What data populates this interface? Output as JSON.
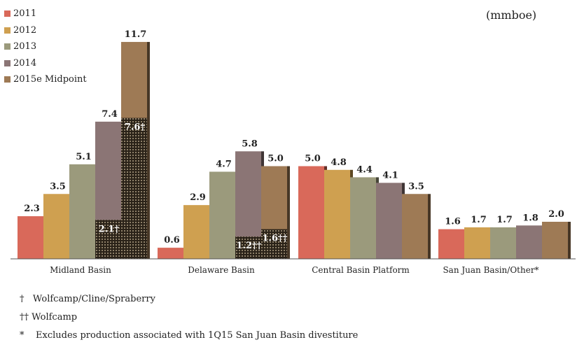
{
  "unit_label": "(mmboe)",
  "legend": [
    {
      "label": "2011",
      "color": "#d9695a"
    },
    {
      "label": "2012",
      "color": "#cfa050"
    },
    {
      "label": "2013",
      "color": "#9b9a7c"
    },
    {
      "label": "2014",
      "color": "#8b7575"
    },
    {
      "label": "2015e Midpoint",
      "color": "#9e7a55"
    }
  ],
  "footnotes": [
    {
      "symbol": "†",
      "text": "Wolfcamp/Cline/Spraberry"
    },
    {
      "symbol": "††",
      "text": "Wolfcamp"
    },
    {
      "symbol": "*",
      "text": "Excludes production associated with 1Q15 San Juan Basin divestiture"
    }
  ],
  "chart_data": {
    "type": "bar",
    "unit": "(mmboe)",
    "categories": [
      "Midland Basin",
      "Delaware Basin",
      "Central Basin Platform",
      "San Juan Basin/Other*"
    ],
    "series": [
      {
        "name": "2011",
        "color": "#d9695a",
        "values": [
          2.3,
          0.6,
          5.0,
          1.6
        ]
      },
      {
        "name": "2012",
        "color": "#cfa050",
        "values": [
          3.5,
          2.9,
          4.8,
          1.7
        ]
      },
      {
        "name": "2013",
        "color": "#9b9a7c",
        "values": [
          5.1,
          4.7,
          4.4,
          1.7
        ]
      },
      {
        "name": "2014",
        "color": "#8b7575",
        "values": [
          7.4,
          5.8,
          4.1,
          1.8
        ]
      },
      {
        "name": "2015e Midpoint",
        "color": "#9e7a55",
        "values": [
          11.7,
          5.0,
          3.5,
          2.0
        ]
      }
    ],
    "value_labels": [
      [
        "2.3",
        "3.5",
        "5.1",
        "7.4",
        "11.7"
      ],
      [
        "0.6",
        "2.9",
        "4.7",
        "5.8",
        "5.0"
      ],
      [
        "5.0",
        "4.8",
        "4.4",
        "4.1",
        "3.5"
      ],
      [
        "1.6",
        "1.7",
        "1.7",
        "1.8",
        "2.0"
      ]
    ],
    "hatched_segments": [
      {
        "category": 0,
        "series": 3,
        "value": 2.1,
        "label": "2.1†"
      },
      {
        "category": 0,
        "series": 4,
        "value": 7.6,
        "label": "7.6†"
      },
      {
        "category": 1,
        "series": 3,
        "value": 1.2,
        "label": "1.2††"
      },
      {
        "category": 1,
        "series": 4,
        "value": 1.6,
        "label": "1.6††"
      }
    ],
    "ylim": [
      0,
      12
    ],
    "grid": false,
    "legend_position": "top-left"
  }
}
